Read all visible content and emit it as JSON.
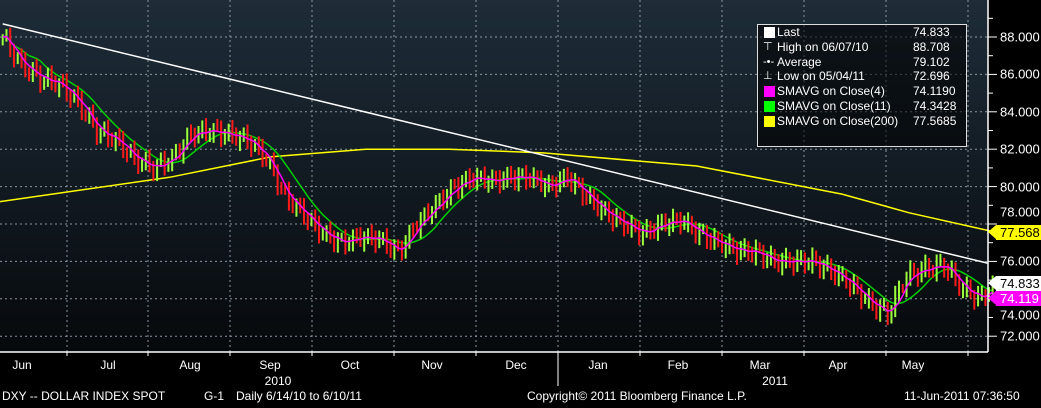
{
  "chart_data": {
    "type": "ohlc",
    "ylim": [
      71,
      89
    ],
    "yticks": [
      "88.000",
      "86.000",
      "84.000",
      "82.000",
      "80.000",
      "78.000",
      "76.000",
      "74.000",
      "72.000"
    ],
    "months": [
      "Jun",
      "Jul",
      "Aug",
      "Sep",
      "Oct",
      "Nov",
      "Dec",
      "Jan",
      "Feb",
      "Mar",
      "Apr",
      "May"
    ],
    "years": [
      "2010",
      "2011"
    ],
    "grid": true,
    "legend_position": "top-right",
    "x": [
      "2010-06-07",
      "2010-06-14",
      "2010-06-21",
      "2010-06-28",
      "2010-07-05",
      "2010-07-12",
      "2010-07-19",
      "2010-07-26",
      "2010-08-02",
      "2010-08-09",
      "2010-08-16",
      "2010-08-23",
      "2010-08-30",
      "2010-09-06",
      "2010-09-13",
      "2010-09-20",
      "2010-09-27",
      "2010-10-04",
      "2010-10-11",
      "2010-10-18",
      "2010-10-25",
      "2010-11-01",
      "2010-11-08",
      "2010-11-15",
      "2010-11-22",
      "2010-11-29",
      "2010-12-06",
      "2010-12-13",
      "2010-12-20",
      "2010-12-27",
      "2011-01-03",
      "2011-01-10",
      "2011-01-17",
      "2011-01-24",
      "2011-01-31",
      "2011-02-07",
      "2011-02-14",
      "2011-02-21",
      "2011-02-28",
      "2011-03-07",
      "2011-03-14",
      "2011-03-21",
      "2011-03-28",
      "2011-04-04",
      "2011-04-11",
      "2011-04-18",
      "2011-04-25",
      "2011-05-02",
      "2011-05-09",
      "2011-05-16",
      "2011-05-23",
      "2011-05-30",
      "2011-06-06",
      "2011-06-10"
    ],
    "close": [
      88.0,
      86.5,
      85.8,
      85.5,
      84.5,
      83.0,
      82.5,
      81.5,
      81.0,
      81.5,
      82.8,
      83.0,
      82.8,
      82.5,
      81.5,
      79.5,
      78.5,
      77.5,
      77.0,
      77.3,
      77.2,
      76.5,
      78.0,
      79.0,
      80.0,
      80.5,
      80.3,
      80.5,
      80.5,
      80.0,
      80.5,
      79.5,
      78.6,
      78.0,
      77.5,
      78.0,
      78.2,
      77.5,
      77.0,
      76.6,
      76.5,
      76.0,
      76.0,
      76.0,
      75.5,
      74.8,
      73.8,
      73.2,
      75.2,
      75.6,
      75.8,
      74.5,
      74.0,
      74.8
    ],
    "sma200": {
      "x": [
        "2010-06-06",
        "2010-08-08",
        "2010-09-15",
        "2010-10-20",
        "2010-11-20",
        "2010-12-25",
        "2011-02-20",
        "2011-04-15",
        "2011-05-10",
        "2011-06-10"
      ],
      "y": [
        79.2,
        80.5,
        81.6,
        82.0,
        82.0,
        81.8,
        81.1,
        79.6,
        78.6,
        77.6
      ]
    },
    "trendline": {
      "x": [
        "2010-06-07",
        "2011-06-10"
      ],
      "y": [
        88.7,
        75.9
      ]
    },
    "colors": {
      "up": "#9bff3c",
      "down": "#ff1a1a",
      "sma4": "#ff00ff",
      "sma11": "#00d000",
      "sma200": "#ffff00",
      "trend": "#ffffff"
    }
  },
  "legend": [
    {
      "label": "Last",
      "value": "74.833",
      "mark": "white-square"
    },
    {
      "label": "High on 06/07/10",
      "value": "88.708",
      "mark": "high-glyph"
    },
    {
      "label": "Average",
      "value": "79.102",
      "mark": "average-glyph"
    },
    {
      "label": "Low on 05/04/11",
      "value": "72.696",
      "mark": "low-glyph"
    },
    {
      "label": "SMAVG on Close(4)",
      "value": "74.1190",
      "mark": "#ff00ff"
    },
    {
      "label": "SMAVG on Close(11)",
      "value": "74.3428",
      "mark": "#00ff00"
    },
    {
      "label": "SMAVG on Close(200)",
      "value": "77.5685",
      "mark": "#ffff00"
    }
  ],
  "tags": {
    "sma200": "77.568",
    "last": "74.833",
    "sma4": "74.119"
  },
  "footer": {
    "ticker": "DXY -- DOLLAR INDEX SPOT",
    "graph": "G-1",
    "range": "Daily  6/14/10 to 6/10/11",
    "copyright": "Copyright© 2011 Bloomberg Finance L.P.",
    "timestamp": "11-Jun-2011 07:36:50"
  }
}
